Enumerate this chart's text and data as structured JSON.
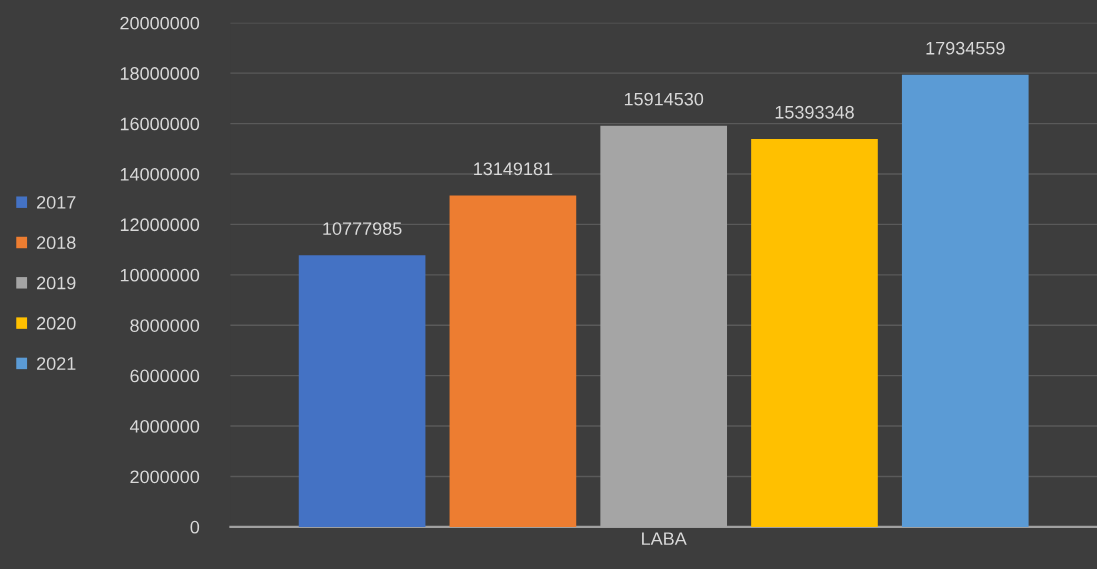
{
  "chart_data": {
    "type": "bar",
    "categories": [
      "LABA"
    ],
    "series": [
      {
        "name": "2017",
        "color": "#4472c4",
        "values": [
          10777985
        ]
      },
      {
        "name": "2018",
        "color": "#ed7d31",
        "values": [
          13149181
        ]
      },
      {
        "name": "2019",
        "color": "#a5a5a5",
        "values": [
          15914530
        ]
      },
      {
        "name": "2020",
        "color": "#ffc000",
        "values": [
          15393348
        ]
      },
      {
        "name": "2021",
        "color": "#5b9bd5",
        "values": [
          17934559
        ]
      }
    ],
    "ylim": [
      0,
      20000000
    ],
    "yticks": [
      0,
      2000000,
      4000000,
      6000000,
      8000000,
      10000000,
      12000000,
      14000000,
      16000000,
      18000000,
      20000000
    ],
    "grid": "y",
    "legend": "left",
    "data_labels": true
  }
}
